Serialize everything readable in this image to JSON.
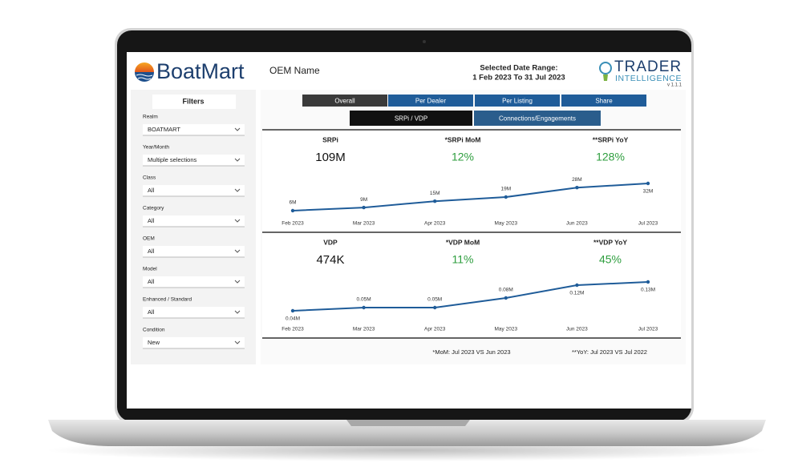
{
  "header": {
    "brand": "BoatMart",
    "oem": "OEM Name",
    "date_range_label": "Selected Date Range:",
    "date_range": "1 Feb 2023 To 31 Jul 2023",
    "logo_line1": "TRADER",
    "logo_line2": "INTELLIGENCE",
    "version": "v 1.1.1"
  },
  "filters": {
    "title": "Filters",
    "items": [
      {
        "label": "Realm",
        "value": "BOATMART"
      },
      {
        "label": "Year/Month",
        "value": "Multiple selections"
      },
      {
        "label": "Class",
        "value": "All"
      },
      {
        "label": "Category",
        "value": "All"
      },
      {
        "label": "OEM",
        "value": "All"
      },
      {
        "label": "Model",
        "value": "All"
      },
      {
        "label": "Enhanced / Standard",
        "value": "All"
      },
      {
        "label": "Condition",
        "value": "New"
      }
    ]
  },
  "tabs": {
    "primary": [
      "Overall",
      "Per Dealer",
      "Per Listing",
      "Share"
    ],
    "secondary": [
      "SRPi / VDP",
      "Connections/Engagements"
    ]
  },
  "sections": [
    {
      "kpis": [
        {
          "label": "SRPi",
          "value": "109M"
        },
        {
          "label": "*SRPi MoM",
          "value": "12%"
        },
        {
          "label": "**SRPi YoY",
          "value": "128%"
        }
      ],
      "chart": {
        "type": "line",
        "color": "#1f5c99",
        "categories": [
          "Feb 2023",
          "Mar 2023",
          "Apr 2023",
          "May 2023",
          "Jun 2023",
          "Jul 2023"
        ],
        "values": [
          6,
          9,
          15,
          19,
          28,
          32
        ],
        "value_labels": [
          "6M",
          "9M",
          "15M",
          "19M",
          "28M",
          "32M"
        ]
      }
    },
    {
      "kpis": [
        {
          "label": "VDP",
          "value": "474K"
        },
        {
          "label": "*VDP MoM",
          "value": "11%"
        },
        {
          "label": "**VDP YoY",
          "value": "45%"
        }
      ],
      "chart": {
        "type": "line",
        "color": "#1f5c99",
        "categories": [
          "Feb 2023",
          "Mar 2023",
          "Apr 2023",
          "May 2023",
          "Jun 2023",
          "Jul 2023"
        ],
        "values": [
          0.04,
          0.05,
          0.05,
          0.08,
          0.12,
          0.13
        ],
        "value_labels": [
          "0.04M",
          "0.05M",
          "0.05M",
          "0.08M",
          "0.12M",
          "0.13M"
        ]
      }
    }
  ],
  "footnotes": [
    "*MoM: Jul 2023 VS Jun 2023",
    "**YoY: Jul 2023 VS Jul 2022"
  ]
}
